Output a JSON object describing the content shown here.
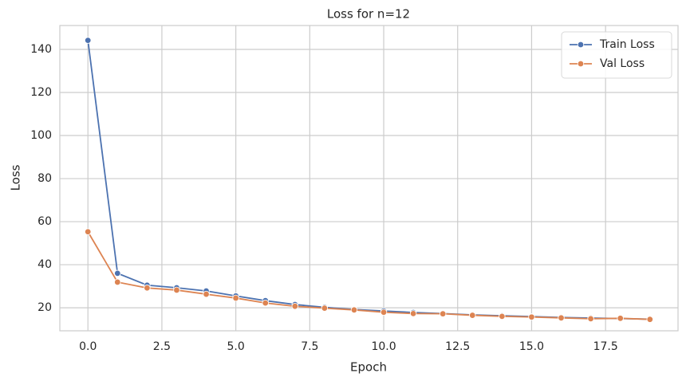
{
  "chart_data": {
    "type": "line",
    "title": "Loss for n=12",
    "x_label": "Epoch",
    "y_label": "Loss",
    "x": [
      0,
      1,
      2,
      3,
      4,
      5,
      6,
      7,
      8,
      9,
      10,
      11,
      12,
      13,
      14,
      15,
      16,
      17,
      18,
      19
    ],
    "series": [
      {
        "name": "Train Loss",
        "color": "#4c72b0",
        "values": [
          144.2,
          36,
          30.5,
          29.3,
          27.8,
          25.5,
          23.3,
          21.5,
          20.2,
          19.2,
          18.5,
          17.8,
          17.3,
          16.7,
          16.3,
          15.9,
          15.5,
          15.2,
          15.0,
          14.7
        ]
      },
      {
        "name": "Val Loss",
        "color": "#dd8452",
        "values": [
          55.3,
          31.9,
          29.2,
          28.2,
          26.3,
          24.5,
          22.2,
          20.7,
          19.8,
          19.0,
          17.9,
          17.3,
          17.2,
          16.5,
          16.0,
          15.7,
          15.3,
          14.9,
          15.1,
          14.6
        ]
      }
    ],
    "xlim": [
      -0.95,
      19.95
    ],
    "xticks": [
      {
        "value": 0,
        "label": "0.0"
      },
      {
        "value": 2.5,
        "label": "2.5"
      },
      {
        "value": 5,
        "label": "5.0"
      },
      {
        "value": 7.5,
        "label": "7.5"
      },
      {
        "value": 10,
        "label": "10.0"
      },
      {
        "value": 12.5,
        "label": "12.5"
      },
      {
        "value": 15,
        "label": "15.0"
      },
      {
        "value": 17.5,
        "label": "17.5"
      }
    ],
    "ylim": [
      9.3,
      151.1
    ],
    "yticks": [
      20,
      40,
      60,
      80,
      100,
      120,
      140
    ],
    "grid": true,
    "legend": "upper right",
    "markers": true
  }
}
